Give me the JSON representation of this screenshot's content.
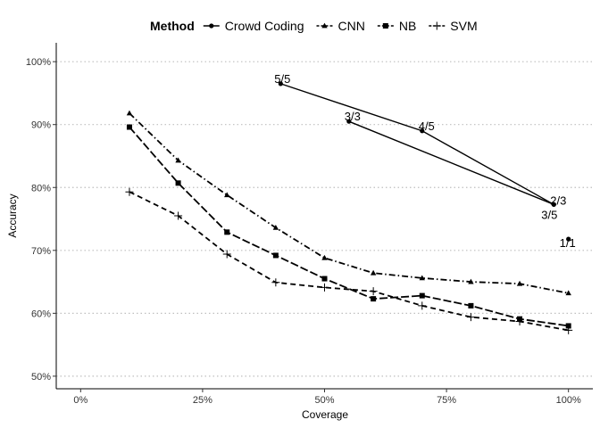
{
  "chart_data": {
    "type": "line",
    "xlabel": "Coverage",
    "ylabel": "Accuracy",
    "xlim": [
      -0.05,
      1.05
    ],
    "ylim": [
      0.48,
      1.03
    ],
    "x_ticks": [
      0,
      0.25,
      0.5,
      0.75,
      1.0
    ],
    "x_tick_labels": [
      "0%",
      "25%",
      "50%",
      "75%",
      "100%"
    ],
    "y_ticks": [
      0.5,
      0.6,
      0.7,
      0.8,
      0.9,
      1.0
    ],
    "y_tick_labels": [
      "50%",
      "60%",
      "70%",
      "80%",
      "90%",
      "100%"
    ],
    "grid": "horizontal dotted",
    "legend": {
      "title": "Method",
      "position": "top"
    },
    "series": [
      {
        "name": "Crowd Coding",
        "marker": "circle",
        "linestyle": "solid",
        "segments": [
          {
            "x": [
              0.41,
              0.7,
              0.97
            ],
            "y": [
              0.965,
              0.89,
              0.773
            ]
          },
          {
            "x": [
              0.55,
              0.97
            ],
            "y": [
              0.905,
              0.773
            ]
          }
        ],
        "points": [
          {
            "x": 0.41,
            "y": 0.965,
            "label": "5/5"
          },
          {
            "x": 0.55,
            "y": 0.905,
            "label": "3/3"
          },
          {
            "x": 0.7,
            "y": 0.89,
            "label": "4/5"
          },
          {
            "x": 0.97,
            "y": 0.773,
            "label": "3/5"
          },
          {
            "x": 0.97,
            "y": 0.773,
            "label": "2/3"
          },
          {
            "x": 1.0,
            "y": 0.718,
            "label": "1/1"
          }
        ]
      },
      {
        "name": "CNN",
        "marker": "triangle",
        "linestyle": "dashdot",
        "x": [
          0.1,
          0.2,
          0.3,
          0.4,
          0.5,
          0.6,
          0.7,
          0.8,
          0.9,
          1.0
        ],
        "y": [
          0.918,
          0.843,
          0.788,
          0.736,
          0.688,
          0.664,
          0.656,
          0.65,
          0.647,
          0.632
        ]
      },
      {
        "name": "NB",
        "marker": "square",
        "linestyle": "longdash",
        "x": [
          0.1,
          0.2,
          0.3,
          0.4,
          0.5,
          0.6,
          0.7,
          0.8,
          0.9,
          1.0
        ],
        "y": [
          0.896,
          0.807,
          0.729,
          0.692,
          0.655,
          0.623,
          0.628,
          0.612,
          0.591,
          0.58
        ]
      },
      {
        "name": "SVM",
        "marker": "plus",
        "linestyle": "dashed",
        "x": [
          0.1,
          0.2,
          0.3,
          0.4,
          0.5,
          0.6,
          0.7,
          0.8,
          0.9,
          1.0
        ],
        "y": [
          0.793,
          0.755,
          0.694,
          0.649,
          0.641,
          0.635,
          0.612,
          0.594,
          0.587,
          0.573
        ]
      }
    ]
  }
}
